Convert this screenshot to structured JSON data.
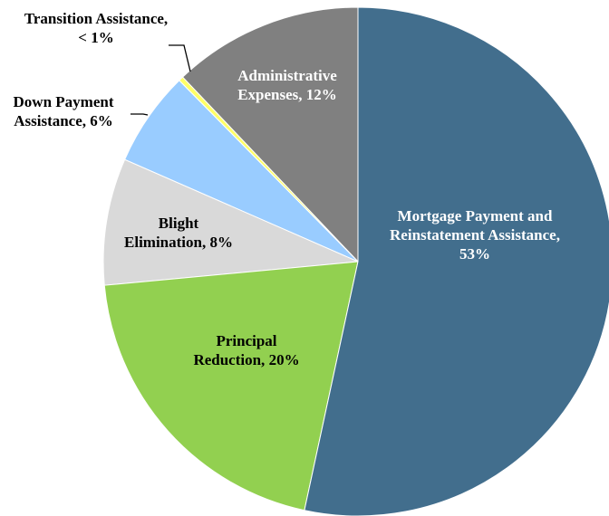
{
  "chart_data": {
    "type": "pie",
    "categories": [
      "Mortgage Payment and Reinstatement Assistance,",
      "Principal Reduction,",
      "Blight Elimination,",
      "Down Payment Assistance,",
      "Transition Assistance,",
      "Administrative Expenses,"
    ],
    "values": [
      53,
      20,
      8,
      6,
      0.3,
      12
    ],
    "value_labels": [
      "53%",
      "20%",
      "8%",
      "6%",
      "< 1%",
      "12%"
    ],
    "colors": [
      "#426e8d",
      "#92d050",
      "#d9d9d9",
      "#99ccff",
      "#ffff66",
      "#808080"
    ]
  }
}
